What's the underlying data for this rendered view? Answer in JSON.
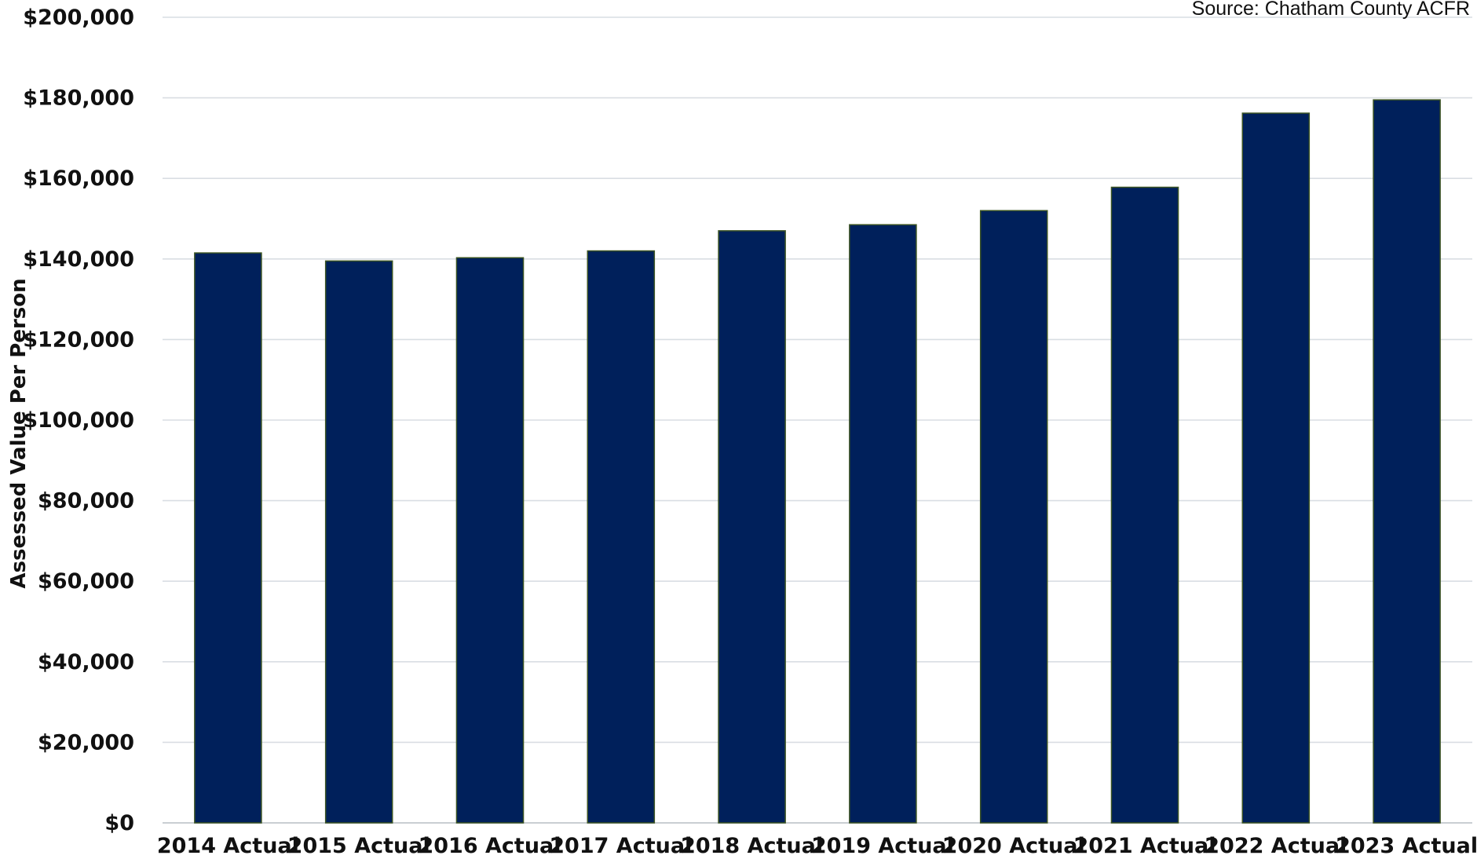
{
  "source_note": "Source: Chatham County ACFR",
  "colors": {
    "bar_fill": "#00205b",
    "gridline": "#d9dee3",
    "text": "#111111"
  },
  "chart_data": {
    "type": "bar",
    "title": "",
    "xlabel": "",
    "ylabel": "Assessed Value Per Person",
    "ylim": [
      0,
      200000
    ],
    "y_ticks": [
      0,
      20000,
      40000,
      60000,
      80000,
      100000,
      120000,
      140000,
      160000,
      180000,
      200000
    ],
    "y_tick_labels": [
      "$0",
      "$20,000",
      "$40,000",
      "$60,000",
      "$80,000",
      "$100,000",
      "$120,000",
      "$140,000",
      "$160,000",
      "$180,000",
      "$200,000"
    ],
    "grid": true,
    "legend": "none",
    "categories": [
      "2014 Actual",
      "2015 Actual",
      "2016 Actual",
      "2017 Actual",
      "2018 Actual",
      "2019 Actual",
      "2020 Actual",
      "2021 Actual",
      "2022 Actual",
      "2023 Actual"
    ],
    "values": [
      141500,
      139500,
      140300,
      142000,
      147000,
      148500,
      152000,
      157800,
      176200,
      179500
    ]
  }
}
